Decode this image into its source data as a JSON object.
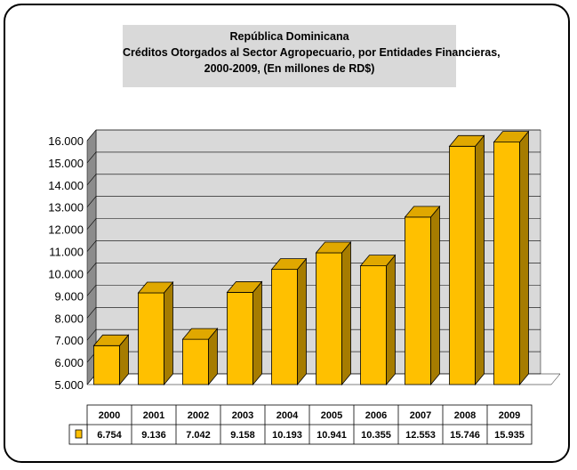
{
  "chart_data": {
    "type": "bar",
    "title": "República Dominicana",
    "subtitle_line1": "Créditos Otorgados al Sector Agropecuario, por Entidades Financieras,",
    "subtitle_line2": "2000-2009,  (En millones de RD$)",
    "categories": [
      "2000",
      "2001",
      "2002",
      "2003",
      "2004",
      "2005",
      "2006",
      "2007",
      "2008",
      "2009"
    ],
    "series": [
      {
        "values": [
          6754,
          9136,
          7042,
          9158,
          10193,
          10941,
          10355,
          12553,
          15746,
          15935
        ],
        "labels": [
          "6.754",
          "9.136",
          "7.042",
          "9.158",
          "10.193",
          "10.941",
          "10.355",
          "12.553",
          "15.746",
          "15.935"
        ]
      }
    ],
    "ylim": [
      5000,
      16000
    ],
    "yticks": [
      "5.000",
      "6.000",
      "7.000",
      "8.000",
      "9.000",
      "10.000",
      "11.000",
      "12.000",
      "13.000",
      "14.000",
      "15.000",
      "16.000"
    ],
    "grid": true,
    "legend": "data-table",
    "colors": {
      "bar_front": "#ffc000",
      "bar_side": "#a67c00",
      "bar_top": "#e0a800",
      "wall": "#d9d9d9",
      "wall_side": "#8c8c8c",
      "floor": "#ffffff"
    }
  }
}
